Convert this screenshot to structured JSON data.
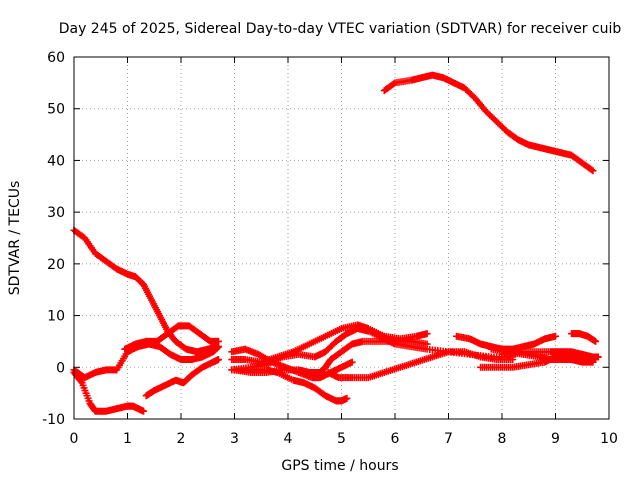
{
  "chart_data": {
    "type": "scatter",
    "title": "Day 245 of 2025, Sidereal Day-to-day VTEC variation (SDTVAR) for receiver cuib",
    "xlabel": "GPS time / hours",
    "ylabel": "SDTVAR / TECUs",
    "xlim": [
      0,
      10
    ],
    "ylim": [
      -10,
      60
    ],
    "xticks": [
      "0",
      "1",
      "2",
      "3",
      "4",
      "5",
      "6",
      "7",
      "8",
      "9",
      "10"
    ],
    "yticks": [
      "-10",
      "0",
      "10",
      "20",
      "30",
      "40",
      "50",
      "60"
    ],
    "grid": true,
    "marker": "+",
    "color": "#ff0000",
    "series": [
      {
        "name": "s1",
        "points": [
          [
            0,
            26.5
          ],
          [
            0.2,
            25
          ],
          [
            0.4,
            22
          ],
          [
            0.6,
            20.5
          ],
          [
            0.8,
            19
          ],
          [
            1.0,
            18
          ],
          [
            1.15,
            17.5
          ],
          [
            1.3,
            16
          ],
          [
            1.45,
            13
          ],
          [
            1.6,
            10
          ],
          [
            1.75,
            7
          ],
          [
            1.9,
            5
          ],
          [
            2.1,
            3.5
          ],
          [
            2.3,
            3
          ],
          [
            2.5,
            3.5
          ],
          [
            2.7,
            4
          ]
        ]
      },
      {
        "name": "s2",
        "points": [
          [
            0,
            -0.5
          ],
          [
            0.2,
            -2
          ],
          [
            0.4,
            -1
          ],
          [
            0.6,
            -0.5
          ],
          [
            0.8,
            -0.5
          ],
          [
            1.0,
            3
          ],
          [
            1.2,
            4
          ],
          [
            1.4,
            4.5
          ],
          [
            1.6,
            4
          ],
          [
            1.8,
            2.5
          ],
          [
            2.0,
            1.5
          ],
          [
            2.2,
            1.5
          ],
          [
            2.4,
            2
          ],
          [
            2.6,
            3
          ],
          [
            2.7,
            4
          ]
        ]
      },
      {
        "name": "s3",
        "points": [
          [
            0,
            -1
          ],
          [
            0.15,
            -3
          ],
          [
            0.3,
            -7
          ],
          [
            0.4,
            -8.5
          ],
          [
            0.6,
            -8.5
          ],
          [
            0.8,
            -8
          ],
          [
            1.0,
            -7.5
          ],
          [
            1.1,
            -7.5
          ],
          [
            1.2,
            -8
          ],
          [
            1.3,
            -8.5
          ]
        ]
      },
      {
        "name": "s4",
        "points": [
          [
            0.95,
            3.5
          ],
          [
            1.15,
            4.5
          ],
          [
            1.35,
            5
          ],
          [
            1.55,
            5
          ],
          [
            1.75,
            6.5
          ],
          [
            1.95,
            8
          ],
          [
            2.15,
            8
          ],
          [
            2.35,
            6.5
          ],
          [
            2.55,
            5
          ],
          [
            2.7,
            5
          ]
        ]
      },
      {
        "name": "s5",
        "points": [
          [
            1.35,
            -5.5
          ],
          [
            1.5,
            -4.5
          ],
          [
            1.7,
            -3.5
          ],
          [
            1.9,
            -2.5
          ],
          [
            2.05,
            -3
          ],
          [
            2.2,
            -1.5
          ],
          [
            2.4,
            0
          ],
          [
            2.6,
            1
          ],
          [
            2.7,
            1.5
          ]
        ]
      },
      {
        "name": "s6",
        "points": [
          [
            2.95,
            3
          ],
          [
            3.2,
            3.5
          ],
          [
            3.45,
            2.5
          ],
          [
            3.7,
            1
          ],
          [
            3.95,
            0
          ],
          [
            4.2,
            -1
          ],
          [
            4.45,
            -2
          ],
          [
            4.6,
            -2
          ],
          [
            4.8,
            -1
          ],
          [
            5.0,
            0
          ],
          [
            5.2,
            1
          ]
        ]
      },
      {
        "name": "s7",
        "points": [
          [
            2.95,
            1.5
          ],
          [
            3.2,
            1.5
          ],
          [
            3.5,
            1
          ],
          [
            3.8,
            2
          ],
          [
            4.1,
            3
          ],
          [
            4.4,
            4.5
          ],
          [
            4.7,
            6
          ],
          [
            5.0,
            7.5
          ],
          [
            5.3,
            8.2
          ],
          [
            5.5,
            7.5
          ],
          [
            5.8,
            6
          ],
          [
            6.1,
            5.5
          ],
          [
            6.4,
            6
          ],
          [
            6.6,
            6.5
          ]
        ]
      },
      {
        "name": "s8",
        "points": [
          [
            2.95,
            -0.5
          ],
          [
            3.3,
            0
          ],
          [
            3.6,
            0.5
          ],
          [
            3.9,
            2
          ],
          [
            4.2,
            2.5
          ],
          [
            4.5,
            2
          ],
          [
            4.7,
            3
          ],
          [
            4.9,
            5
          ],
          [
            5.1,
            6.5
          ],
          [
            5.3,
            7.5
          ],
          [
            5.5,
            7
          ],
          [
            5.8,
            5.5
          ],
          [
            6.0,
            4.5
          ],
          [
            6.3,
            4
          ],
          [
            6.6,
            3.5
          ],
          [
            7.0,
            3
          ],
          [
            7.4,
            2.5
          ],
          [
            7.8,
            2
          ],
          [
            8.2,
            2
          ]
        ]
      },
      {
        "name": "s9",
        "points": [
          [
            2.95,
            -0.5
          ],
          [
            3.3,
            -0.5
          ],
          [
            3.6,
            -0.5
          ],
          [
            3.8,
            -1
          ],
          [
            4.1,
            -2.5
          ],
          [
            4.3,
            -3
          ],
          [
            4.5,
            -4
          ],
          [
            4.7,
            -5.5
          ],
          [
            4.9,
            -6.5
          ],
          [
            5.0,
            -6.5
          ],
          [
            5.1,
            -6
          ]
        ]
      },
      {
        "name": "s10",
        "points": [
          [
            3.0,
            -0.5
          ],
          [
            3.3,
            -1
          ],
          [
            3.6,
            -1
          ],
          [
            3.9,
            -0.5
          ],
          [
            4.2,
            -0.5
          ],
          [
            4.4,
            -1
          ],
          [
            4.6,
            -1
          ],
          [
            4.7,
            0
          ],
          [
            4.8,
            1.5
          ],
          [
            5.0,
            3
          ],
          [
            5.2,
            4.5
          ],
          [
            5.4,
            5
          ],
          [
            5.7,
            5
          ],
          [
            6.0,
            5
          ],
          [
            6.3,
            5
          ],
          [
            6.6,
            4.5
          ]
        ]
      },
      {
        "name": "s11",
        "points": [
          [
            4.75,
            -1
          ],
          [
            4.95,
            -2
          ],
          [
            5.2,
            -2
          ],
          [
            5.5,
            -2
          ],
          [
            5.8,
            -1
          ],
          [
            6.1,
            0
          ],
          [
            6.4,
            1
          ],
          [
            6.7,
            2
          ],
          [
            7.0,
            3
          ],
          [
            7.3,
            3
          ],
          [
            7.6,
            2
          ],
          [
            7.9,
            1.5
          ],
          [
            8.2,
            1.5
          ]
        ]
      },
      {
        "name": "s12",
        "points": [
          [
            5.8,
            53.5
          ],
          [
            6.0,
            55
          ],
          [
            6.3,
            55.5
          ],
          [
            6.5,
            56
          ],
          [
            6.7,
            56.5
          ],
          [
            6.9,
            56
          ],
          [
            7.1,
            55
          ],
          [
            7.3,
            54
          ],
          [
            7.5,
            52
          ],
          [
            7.7,
            49.5
          ],
          [
            7.9,
            47.5
          ],
          [
            8.1,
            45.5
          ],
          [
            8.3,
            44
          ],
          [
            8.5,
            43
          ],
          [
            8.7,
            42.5
          ],
          [
            8.9,
            42
          ],
          [
            9.1,
            41.5
          ],
          [
            9.3,
            41
          ],
          [
            9.5,
            39.5
          ],
          [
            9.7,
            38
          ]
        ]
      },
      {
        "name": "s13",
        "points": [
          [
            7.15,
            6
          ],
          [
            7.4,
            5.5
          ],
          [
            7.6,
            4.5
          ],
          [
            7.8,
            4
          ],
          [
            8.0,
            3.5
          ],
          [
            8.2,
            3.5
          ],
          [
            8.4,
            4
          ],
          [
            8.6,
            4.5
          ],
          [
            8.8,
            5.5
          ],
          [
            9.0,
            6
          ]
        ]
      },
      {
        "name": "s14",
        "points": [
          [
            7.6,
            0
          ],
          [
            7.9,
            0
          ],
          [
            8.2,
            0
          ],
          [
            8.5,
            0.5
          ],
          [
            8.8,
            1
          ],
          [
            9.0,
            2
          ],
          [
            9.2,
            2.5
          ],
          [
            9.4,
            2.5
          ],
          [
            9.6,
            2
          ],
          [
            9.75,
            1.5
          ]
        ]
      },
      {
        "name": "s15",
        "points": [
          [
            8.0,
            2.5
          ],
          [
            8.3,
            3
          ],
          [
            8.6,
            3
          ],
          [
            8.9,
            3
          ],
          [
            9.1,
            3
          ],
          [
            9.3,
            3
          ],
          [
            9.5,
            2.5
          ],
          [
            9.7,
            2
          ],
          [
            9.8,
            2
          ]
        ]
      },
      {
        "name": "s16",
        "points": [
          [
            7.8,
            3.5
          ],
          [
            8.1,
            3
          ],
          [
            8.4,
            2.5
          ],
          [
            8.7,
            2
          ],
          [
            8.9,
            1.5
          ],
          [
            9.1,
            1.5
          ],
          [
            9.3,
            1.5
          ],
          [
            9.5,
            1
          ],
          [
            9.7,
            1
          ]
        ]
      },
      {
        "name": "s17",
        "points": [
          [
            9.3,
            6.5
          ],
          [
            9.45,
            6.5
          ],
          [
            9.6,
            6
          ],
          [
            9.75,
            5
          ]
        ]
      }
    ]
  }
}
